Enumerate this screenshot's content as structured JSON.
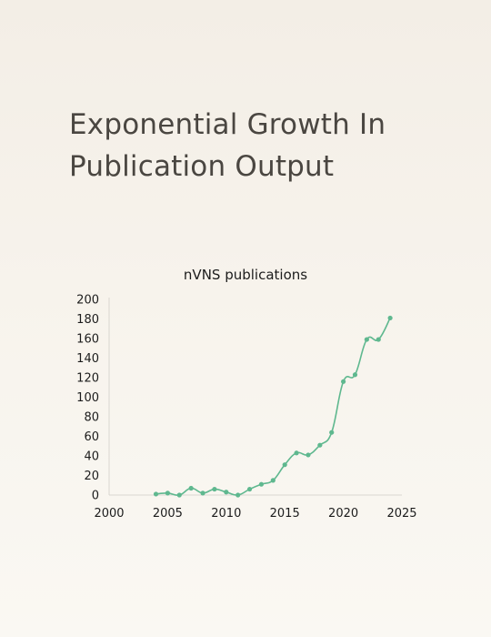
{
  "page": {
    "headline": "Exponential Growth In Publication Output"
  },
  "chart_data": {
    "type": "line",
    "title": "nVNS publications",
    "xlabel": "",
    "ylabel": "",
    "xlim": [
      2000,
      2025
    ],
    "ylim": [
      0,
      200
    ],
    "xticks": [
      2000,
      2005,
      2010,
      2015,
      2020,
      2025
    ],
    "yticks": [
      0,
      20,
      40,
      60,
      80,
      100,
      120,
      140,
      160,
      180,
      200
    ],
    "grid": false,
    "legend": "none",
    "line_color": "#5fb88f",
    "axis_color": "#d9d6d0",
    "series": [
      {
        "x": [
          2004,
          2005,
          2006,
          2007,
          2008,
          2009,
          2010,
          2011,
          2012,
          2013,
          2014,
          2015,
          2016,
          2017,
          2018,
          2019,
          2020,
          2021,
          2022,
          2023,
          2024
        ],
        "values": [
          1,
          2,
          0,
          7,
          2,
          6,
          3,
          0,
          6,
          11,
          15,
          31,
          43,
          41,
          51,
          64,
          116,
          123,
          159,
          159,
          181
        ]
      }
    ]
  }
}
